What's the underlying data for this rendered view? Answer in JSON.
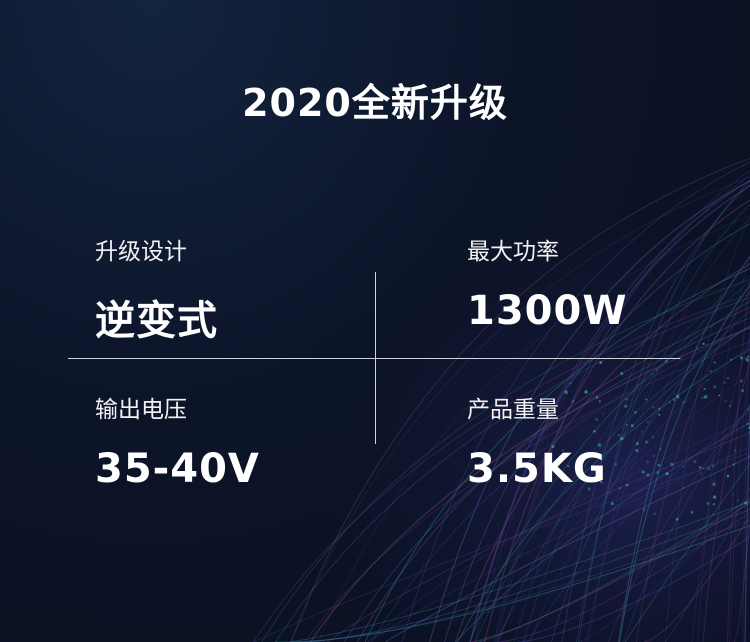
{
  "title": "2020全新升级",
  "specs": [
    {
      "label": "升级设计",
      "value": "逆变式"
    },
    {
      "label": "最大功率",
      "value": "1300W"
    },
    {
      "label": "输出电压",
      "value": "35-40V"
    },
    {
      "label": "产品重量",
      "value": "3.5KG"
    }
  ]
}
